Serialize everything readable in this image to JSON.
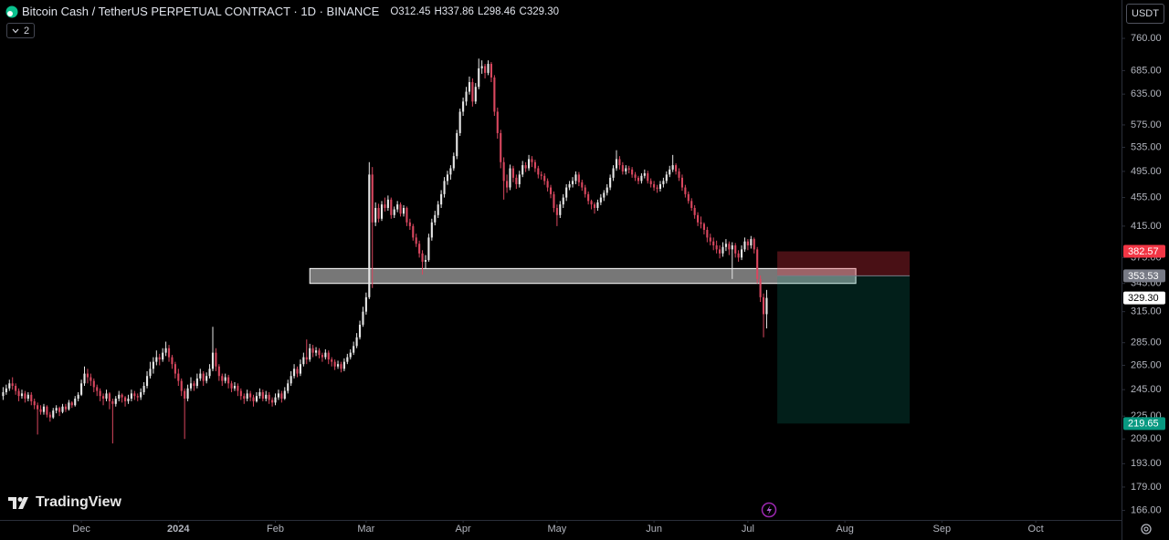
{
  "chart_data": {
    "type": "candlestick",
    "symbol": "Bitcoin Cash / TetherUS PERPETUAL CONTRACT · 1D · BINANCE",
    "legend_fields": [
      {
        "key": "O",
        "value": "312.45"
      },
      {
        "key": "H",
        "value": "337.86"
      },
      {
        "key": "L",
        "value": "298.46"
      },
      {
        "key": "C",
        "value": "329.30"
      }
    ],
    "indicator_count": "2",
    "currency": "USDT",
    "brand": "TradingView",
    "log_scale": true,
    "grid": false,
    "up_color": "#e6e6e6",
    "down_color": "#d9475f",
    "xlim": [
      -1,
      357.4
    ],
    "xticks": [
      {
        "value": 25,
        "label": "Dec"
      },
      {
        "value": 56,
        "label": "2024"
      },
      {
        "value": 87,
        "label": "Feb"
      },
      {
        "value": 116,
        "label": "Mar"
      },
      {
        "value": 147,
        "label": "Apr"
      },
      {
        "value": 177,
        "label": "May"
      },
      {
        "value": 208,
        "label": "Jun"
      },
      {
        "value": 238,
        "label": "Jul"
      },
      {
        "value": 269,
        "label": "Aug"
      },
      {
        "value": 300,
        "label": "Sep"
      },
      {
        "value": 330,
        "label": "Oct"
      }
    ],
    "ylim": [
      161,
      860
    ],
    "yticks": [
      {
        "value": 760,
        "label": "760.00"
      },
      {
        "value": 685,
        "label": "685.00"
      },
      {
        "value": 635,
        "label": "635.00"
      },
      {
        "value": 575,
        "label": "575.00"
      },
      {
        "value": 535,
        "label": "535.00"
      },
      {
        "value": 495,
        "label": "495.00"
      },
      {
        "value": 455,
        "label": "455.00"
      },
      {
        "value": 415,
        "label": "415.00"
      },
      {
        "value": 375,
        "label": "375.00"
      },
      {
        "value": 345,
        "label": "345.00"
      },
      {
        "value": 315,
        "label": "315.00"
      },
      {
        "value": 285,
        "label": "285.00"
      },
      {
        "value": 265,
        "label": "265.00"
      },
      {
        "value": 245,
        "label": "245.00"
      },
      {
        "value": 225,
        "label": "225.00"
      },
      {
        "value": 209,
        "label": "209.00"
      },
      {
        "value": 193,
        "label": "193.00"
      },
      {
        "value": 179,
        "label": "179.00"
      },
      {
        "value": 166,
        "label": "166.00"
      }
    ],
    "zone": {
      "x": [
        98,
        272.5
      ],
      "y": [
        345,
        362
      ],
      "color": "#d9d9d9"
    },
    "position": {
      "x": [
        247.4,
        289.7
      ],
      "stop": {
        "value": 382.57,
        "label": "382.57",
        "color": "#f23645"
      },
      "entry": {
        "value": 353.53,
        "label": "353.53",
        "color": "#787b86"
      },
      "target": {
        "value": 219.65,
        "label": "219.65",
        "color": "#089981"
      }
    },
    "last_price": {
      "value": 329.3,
      "label": "329.30",
      "color": "#ffffff"
    },
    "ohlc": [
      [
        240,
        247,
        237,
        243
      ],
      [
        243,
        249,
        241,
        246
      ],
      [
        246,
        253,
        244,
        250
      ],
      [
        250,
        255,
        245,
        248
      ],
      [
        248,
        250,
        241,
        244
      ],
      [
        244,
        246,
        236,
        240
      ],
      [
        240,
        245,
        238,
        242
      ],
      [
        242,
        244,
        235,
        238
      ],
      [
        238,
        243,
        236,
        241
      ],
      [
        241,
        243,
        233,
        236
      ],
      [
        236,
        238,
        230,
        233
      ],
      [
        233,
        235,
        212,
        230
      ],
      [
        230,
        233,
        226,
        228
      ],
      [
        228,
        234,
        226,
        232
      ],
      [
        232,
        233,
        224,
        226
      ],
      [
        226,
        228,
        221,
        224
      ],
      [
        224,
        231,
        223,
        229
      ],
      [
        229,
        233,
        227,
        231
      ],
      [
        231,
        232,
        225,
        228
      ],
      [
        228,
        234,
        227,
        232
      ],
      [
        232,
        234,
        228,
        230
      ],
      [
        230,
        237,
        229,
        235
      ],
      [
        235,
        236,
        231,
        233
      ],
      [
        233,
        240,
        232,
        238
      ],
      [
        238,
        243,
        236,
        241
      ],
      [
        241,
        253,
        240,
        250
      ],
      [
        250,
        264,
        248,
        258
      ],
      [
        258,
        262,
        250,
        255
      ],
      [
        255,
        258,
        248,
        252
      ],
      [
        252,
        254,
        243,
        247
      ],
      [
        247,
        249,
        240,
        244
      ],
      [
        244,
        246,
        236,
        240
      ],
      [
        240,
        242,
        233,
        238
      ],
      [
        238,
        245,
        236,
        242
      ],
      [
        242,
        243,
        230,
        236
      ],
      [
        236,
        238,
        206,
        234
      ],
      [
        234,
        240,
        232,
        238
      ],
      [
        238,
        244,
        236,
        241
      ],
      [
        241,
        242,
        235,
        239
      ],
      [
        239,
        240,
        232,
        236
      ],
      [
        236,
        241,
        234,
        238
      ],
      [
        238,
        245,
        236,
        242
      ],
      [
        242,
        244,
        237,
        240
      ],
      [
        240,
        242,
        236,
        239
      ],
      [
        239,
        246,
        237,
        243
      ],
      [
        243,
        251,
        241,
        248
      ],
      [
        248,
        260,
        246,
        256
      ],
      [
        256,
        268,
        254,
        262
      ],
      [
        262,
        272,
        258,
        268
      ],
      [
        268,
        278,
        265,
        272
      ],
      [
        272,
        275,
        265,
        270
      ],
      [
        270,
        280,
        268,
        276
      ],
      [
        276,
        286,
        273,
        280
      ],
      [
        280,
        283,
        268,
        272
      ],
      [
        272,
        274,
        262,
        266
      ],
      [
        266,
        268,
        254,
        258
      ],
      [
        258,
        262,
        248,
        252
      ],
      [
        252,
        254,
        240,
        244
      ],
      [
        244,
        246,
        209,
        238
      ],
      [
        238,
        249,
        236,
        246
      ],
      [
        246,
        255,
        244,
        250
      ],
      [
        250,
        252,
        244,
        248
      ],
      [
        248,
        258,
        246,
        254
      ],
      [
        254,
        262,
        252,
        258
      ],
      [
        258,
        260,
        248,
        252
      ],
      [
        252,
        259,
        250,
        256
      ],
      [
        256,
        266,
        254,
        262
      ],
      [
        262,
        300,
        260,
        276
      ],
      [
        276,
        280,
        260,
        264
      ],
      [
        264,
        266,
        252,
        256
      ],
      [
        256,
        258,
        248,
        252
      ],
      [
        252,
        258,
        250,
        255
      ],
      [
        255,
        257,
        246,
        250
      ],
      [
        250,
        252,
        243,
        246
      ],
      [
        246,
        251,
        244,
        248
      ],
      [
        248,
        250,
        240,
        244
      ],
      [
        244,
        246,
        237,
        240
      ],
      [
        240,
        242,
        234,
        238
      ],
      [
        238,
        245,
        236,
        242
      ],
      [
        242,
        244,
        236,
        239
      ],
      [
        239,
        241,
        232,
        236
      ],
      [
        236,
        243,
        235,
        240
      ],
      [
        240,
        246,
        238,
        243
      ],
      [
        243,
        245,
        236,
        238
      ],
      [
        238,
        244,
        236,
        241
      ],
      [
        241,
        243,
        234,
        237
      ],
      [
        237,
        239,
        232,
        235
      ],
      [
        235,
        242,
        233,
        239
      ],
      [
        239,
        245,
        237,
        242
      ],
      [
        242,
        244,
        235,
        238
      ],
      [
        238,
        247,
        237,
        244
      ],
      [
        244,
        253,
        242,
        250
      ],
      [
        250,
        260,
        248,
        256
      ],
      [
        256,
        266,
        254,
        262
      ],
      [
        262,
        264,
        255,
        258
      ],
      [
        258,
        270,
        256,
        266
      ],
      [
        266,
        276,
        264,
        272
      ],
      [
        272,
        288,
        266,
        270
      ],
      [
        270,
        284,
        268,
        280
      ],
      [
        280,
        283,
        272,
        276
      ],
      [
        276,
        281,
        273,
        278
      ],
      [
        278,
        280,
        271,
        274
      ],
      [
        274,
        276,
        268,
        272
      ],
      [
        272,
        279,
        270,
        276
      ],
      [
        276,
        278,
        266,
        270
      ],
      [
        270,
        272,
        264,
        268
      ],
      [
        268,
        270,
        261,
        264
      ],
      [
        264,
        269,
        262,
        266
      ],
      [
        266,
        268,
        259,
        262
      ],
      [
        262,
        271,
        260,
        268
      ],
      [
        268,
        275,
        266,
        272
      ],
      [
        272,
        279,
        270,
        276
      ],
      [
        276,
        286,
        274,
        282
      ],
      [
        282,
        294,
        280,
        290
      ],
      [
        290,
        306,
        288,
        302
      ],
      [
        302,
        320,
        300,
        315
      ],
      [
        315,
        335,
        312,
        330
      ],
      [
        330,
        510,
        328,
        490
      ],
      [
        490,
        502,
        340,
        420
      ],
      [
        420,
        448,
        415,
        440
      ],
      [
        440,
        446,
        420,
        425
      ],
      [
        425,
        450,
        422,
        445
      ],
      [
        445,
        455,
        435,
        440
      ],
      [
        440,
        458,
        436,
        452
      ],
      [
        452,
        455,
        425,
        430
      ],
      [
        430,
        442,
        426,
        438
      ],
      [
        438,
        450,
        434,
        445
      ],
      [
        445,
        448,
        428,
        432
      ],
      [
        432,
        444,
        428,
        440
      ],
      [
        440,
        442,
        415,
        420
      ],
      [
        420,
        425,
        410,
        415
      ],
      [
        415,
        418,
        396,
        400
      ],
      [
        400,
        405,
        388,
        392
      ],
      [
        392,
        396,
        375,
        380
      ],
      [
        380,
        384,
        355,
        370
      ],
      [
        370,
        378,
        362,
        372
      ],
      [
        372,
        405,
        370,
        400
      ],
      [
        400,
        425,
        396,
        420
      ],
      [
        420,
        436,
        416,
        430
      ],
      [
        430,
        450,
        426,
        445
      ],
      [
        445,
        466,
        440,
        460
      ],
      [
        460,
        486,
        455,
        480
      ],
      [
        480,
        496,
        474,
        490
      ],
      [
        490,
        505,
        482,
        500
      ],
      [
        500,
        526,
        496,
        520
      ],
      [
        520,
        566,
        515,
        560
      ],
      [
        560,
        606,
        555,
        600
      ],
      [
        600,
        628,
        592,
        620
      ],
      [
        620,
        650,
        612,
        640
      ],
      [
        640,
        672,
        634,
        660
      ],
      [
        660,
        668,
        610,
        620
      ],
      [
        620,
        658,
        615,
        650
      ],
      [
        650,
        712,
        645,
        690
      ],
      [
        690,
        708,
        678,
        695
      ],
      [
        695,
        700,
        668,
        680
      ],
      [
        680,
        708,
        675,
        700
      ],
      [
        700,
        704,
        660,
        670
      ],
      [
        670,
        675,
        592,
        600
      ],
      [
        600,
        608,
        550,
        560
      ],
      [
        560,
        566,
        500,
        510
      ],
      [
        510,
        518,
        452,
        480
      ],
      [
        480,
        490,
        462,
        470
      ],
      [
        470,
        506,
        466,
        500
      ],
      [
        500,
        504,
        478,
        485
      ],
      [
        485,
        490,
        468,
        475
      ],
      [
        475,
        496,
        470,
        490
      ],
      [
        490,
        512,
        486,
        505
      ],
      [
        505,
        510,
        494,
        500
      ],
      [
        500,
        522,
        496,
        515
      ],
      [
        515,
        520,
        502,
        510
      ],
      [
        510,
        514,
        494,
        500
      ],
      [
        500,
        504,
        484,
        490
      ],
      [
        490,
        495,
        482,
        488
      ],
      [
        488,
        492,
        474,
        480
      ],
      [
        480,
        484,
        464,
        470
      ],
      [
        470,
        474,
        454,
        460
      ],
      [
        460,
        464,
        434,
        440
      ],
      [
        440,
        445,
        415,
        430
      ],
      [
        430,
        450,
        426,
        445
      ],
      [
        445,
        460,
        440,
        455
      ],
      [
        455,
        475,
        450,
        470
      ],
      [
        470,
        480,
        466,
        475
      ],
      [
        475,
        486,
        470,
        480
      ],
      [
        480,
        495,
        475,
        490
      ],
      [
        490,
        494,
        472,
        478
      ],
      [
        478,
        482,
        465,
        470
      ],
      [
        470,
        474,
        455,
        460
      ],
      [
        460,
        464,
        445,
        450
      ],
      [
        450,
        452,
        438,
        445
      ],
      [
        445,
        448,
        432,
        440
      ],
      [
        440,
        452,
        436,
        448
      ],
      [
        448,
        460,
        444,
        455
      ],
      [
        455,
        466,
        450,
        462
      ],
      [
        462,
        475,
        458,
        470
      ],
      [
        470,
        490,
        466,
        485
      ],
      [
        485,
        505,
        480,
        500
      ],
      [
        500,
        530,
        496,
        515
      ],
      [
        515,
        520,
        498,
        505
      ],
      [
        505,
        510,
        490,
        495
      ],
      [
        495,
        505,
        490,
        500
      ],
      [
        500,
        504,
        492,
        498
      ],
      [
        498,
        502,
        485,
        490
      ],
      [
        490,
        494,
        480,
        485
      ],
      [
        485,
        488,
        475,
        480
      ],
      [
        480,
        492,
        476,
        488
      ],
      [
        488,
        498,
        484,
        492
      ],
      [
        492,
        496,
        476,
        480
      ],
      [
        480,
        484,
        470,
        475
      ],
      [
        475,
        480,
        465,
        470
      ],
      [
        470,
        474,
        462,
        468
      ],
      [
        468,
        480,
        464,
        475
      ],
      [
        475,
        485,
        470,
        480
      ],
      [
        480,
        495,
        476,
        490
      ],
      [
        490,
        504,
        486,
        498
      ],
      [
        498,
        522,
        494,
        505
      ],
      [
        505,
        508,
        490,
        495
      ],
      [
        495,
        500,
        480,
        485
      ],
      [
        485,
        490,
        465,
        470
      ],
      [
        470,
        474,
        455,
        460
      ],
      [
        460,
        464,
        446,
        450
      ],
      [
        450,
        454,
        436,
        440
      ],
      [
        440,
        444,
        425,
        430
      ],
      [
        430,
        434,
        415,
        420
      ],
      [
        420,
        428,
        412,
        418
      ],
      [
        418,
        420,
        404,
        410
      ],
      [
        410,
        414,
        394,
        400
      ],
      [
        400,
        405,
        390,
        395
      ],
      [
        395,
        400,
        384,
        390
      ],
      [
        390,
        396,
        380,
        385
      ],
      [
        385,
        390,
        374,
        380
      ],
      [
        380,
        394,
        376,
        388
      ],
      [
        388,
        398,
        383,
        392
      ],
      [
        392,
        395,
        378,
        385
      ],
      [
        385,
        394,
        350,
        390
      ],
      [
        390,
        393,
        375,
        380
      ],
      [
        380,
        384,
        370,
        375
      ],
      [
        375,
        390,
        372,
        385
      ],
      [
        385,
        400,
        382,
        395
      ],
      [
        395,
        398,
        384,
        390
      ],
      [
        390,
        402,
        386,
        398
      ],
      [
        398,
        400,
        380,
        385
      ],
      [
        385,
        388,
        345,
        350
      ],
      [
        350,
        354,
        325,
        330
      ],
      [
        330,
        334,
        290,
        312.45
      ],
      [
        312.45,
        337.86,
        298.46,
        329.3
      ]
    ]
  }
}
